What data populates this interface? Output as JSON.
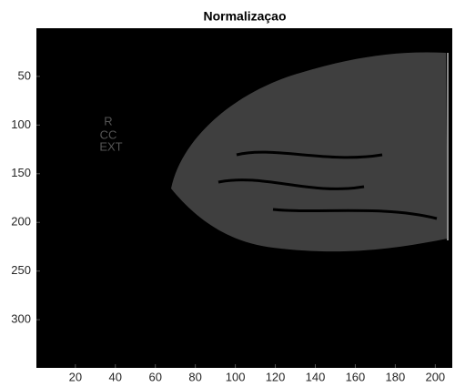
{
  "chart_data": {
    "type": "image",
    "title": "Normalizaçao",
    "image_text": [
      "R",
      "CC",
      "EXT"
    ],
    "xlim": [
      0.5,
      208.5
    ],
    "xticks": [
      20,
      40,
      60,
      80,
      100,
      120,
      140,
      160,
      180,
      200
    ],
    "ylim": [
      0.5,
      349.5
    ],
    "yticks": [
      50,
      100,
      150,
      200,
      250,
      300
    ],
    "y_reversed": true
  }
}
